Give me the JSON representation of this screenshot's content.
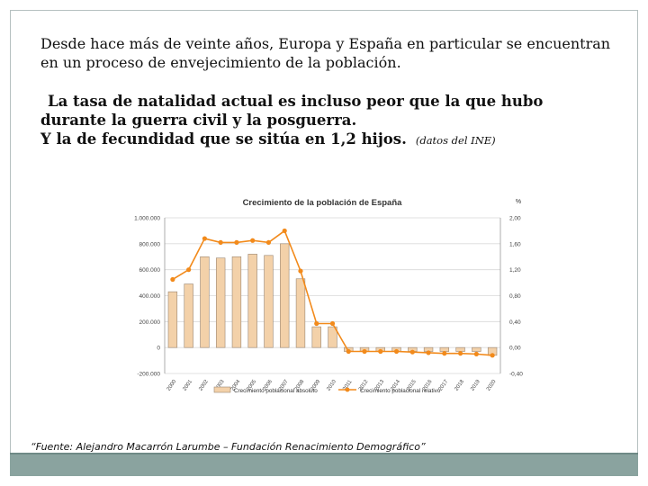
{
  "slide": {
    "intro_line1": "Desde hace más de veinte años, Europa y España en particular se encuentran",
    "intro_line2": "en un proceso de envejecimiento de la población.",
    "fact_line1": "La tasa de natalidad actual es incluso peor que la que hubo",
    "fact_line2": "durante la guerra civil y la posguerra.",
    "fact_line3": "Y la de fecundidad que se sitúa en 1,2 hijos.",
    "fact_note": "(datos del INE)",
    "source": "“Fuente: Alejandro Macarrón Larumbe – Fundación Renacimiento Demográfico”"
  },
  "colors": {
    "bar": "#f3d1a9",
    "bar_stroke": "#9a8672",
    "line": "#f28a1b",
    "grid": "#d9d9d9",
    "bottom_bar": "#8aa39f"
  },
  "chart_data": {
    "type": "bar",
    "title": "Crecimiento de la población de España",
    "categories": [
      "2000",
      "2001",
      "2002",
      "2003",
      "2004",
      "2005",
      "2006",
      "2007",
      "2008",
      "2009",
      "2010",
      "2011",
      "2012",
      "2013",
      "2014",
      "2015",
      "2016",
      "2017",
      "2018",
      "2019",
      "2020"
    ],
    "y_left": {
      "label": "",
      "ticks": [
        "1.000.000",
        "800.000",
        "600.000",
        "400.000",
        "200.000",
        "0",
        "-200.000"
      ],
      "ylim": [
        -200000,
        1000000
      ]
    },
    "y_right": {
      "label": "%",
      "ticks": [
        "2,00",
        "1,60",
        "1,20",
        "0,80",
        "0,40",
        "0,00",
        "-0,40"
      ],
      "ylim": [
        -0.4,
        2.0
      ]
    },
    "series": [
      {
        "name": "Crecimiento poblacional absoluto",
        "kind": "bar",
        "axis": "left",
        "values": [
          430000,
          490000,
          700000,
          690000,
          700000,
          720000,
          710000,
          800000,
          530000,
          160000,
          160000,
          -30000,
          -30000,
          -30000,
          -30000,
          -30000,
          -30000,
          -30000,
          -30000,
          -30000,
          -60000
        ]
      },
      {
        "name": "Crecimiento poblacional relativo",
        "kind": "line",
        "axis": "right",
        "values": [
          1.05,
          1.2,
          1.68,
          1.62,
          1.62,
          1.65,
          1.62,
          1.8,
          1.18,
          0.37,
          0.37,
          -0.06,
          -0.06,
          -0.06,
          -0.06,
          -0.07,
          -0.08,
          -0.09,
          -0.09,
          -0.1,
          -0.12
        ]
      }
    ],
    "grid": true,
    "legend": "bottom"
  }
}
